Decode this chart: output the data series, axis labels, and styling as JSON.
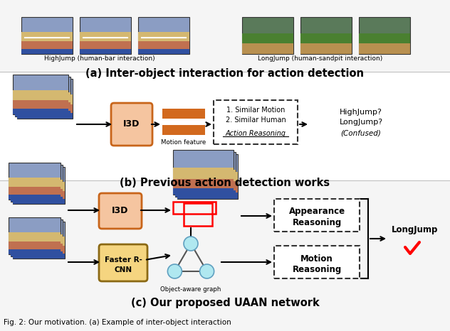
{
  "section_a_title": "(a) Inter-object interaction for action detection",
  "section_b_title": "(b) Previous action detection works",
  "section_c_title": "(c) Our proposed UAAN network",
  "label_highjump": "HighJump (human-bar interaction)",
  "label_longjump": "LongJump (human-sandpit interaction)",
  "i3d_color": "#F5C5A0",
  "i3d_border": "#C8651A",
  "faster_rcnn_color": "#F5D580",
  "faster_rcnn_border": "#8B6914",
  "feature_bar_color": "#D2691E",
  "bg_color": "#FFFFFF",
  "graph_node_color": "#B0E8F0",
  "caption": "Fig. 2: Our motivation. (a) Example of inter-object interaction"
}
